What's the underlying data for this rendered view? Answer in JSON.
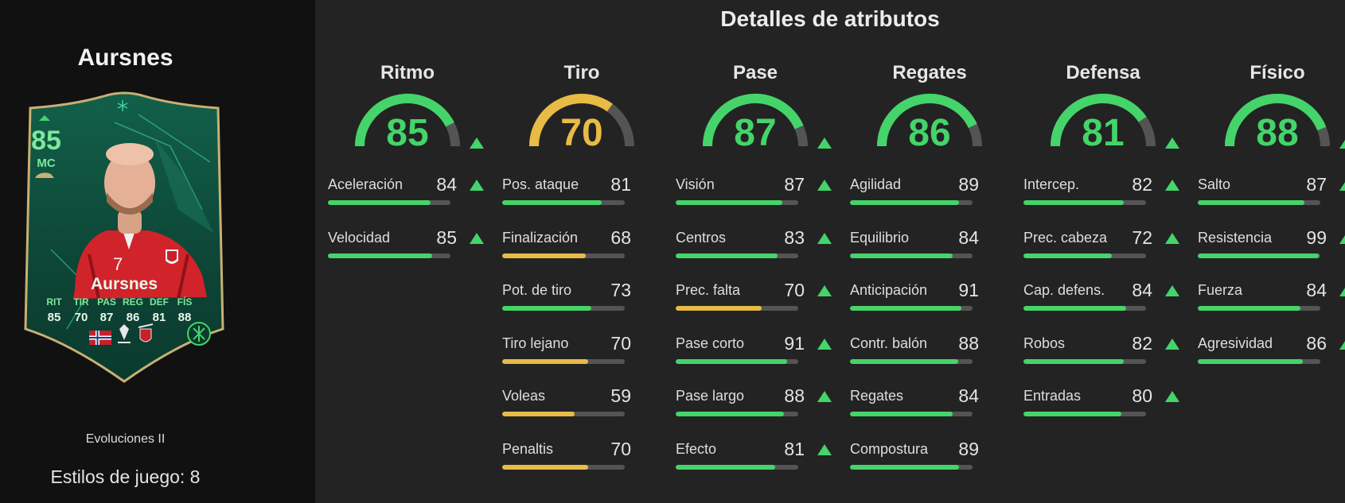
{
  "player": {
    "name": "Aursnes",
    "card_label": "Evoluciones II",
    "playstyles": "Estilos de juego: 8"
  },
  "card": {
    "rating": "85",
    "position": "MC",
    "name": "Aursnes",
    "headers": [
      "RIT",
      "TIR",
      "PAS",
      "REG",
      "DEF",
      "FÍS"
    ],
    "values": [
      "85",
      "70",
      "87",
      "86",
      "81",
      "88"
    ],
    "shirt_number": "7"
  },
  "title": "Detalles de atributos",
  "colors": {
    "green": "#44d46a",
    "yellow": "#e8bb45",
    "track": "#545454",
    "card_bg": "#0f4a3a",
    "card_trim": "#c9b073"
  },
  "categories": [
    {
      "name": "Ritmo",
      "value": 85,
      "color": "#44d46a",
      "arrow": true,
      "stats": [
        {
          "label": "Aceleración",
          "value": 84,
          "color": "#44d46a",
          "arrow": true
        },
        {
          "label": "Velocidad",
          "value": 85,
          "color": "#44d46a",
          "arrow": true
        }
      ]
    },
    {
      "name": "Tiro",
      "value": 70,
      "color": "#e8bb45",
      "arrow": false,
      "stats": [
        {
          "label": "Pos. ataque",
          "value": 81,
          "color": "#44d46a",
          "arrow": false
        },
        {
          "label": "Finalización",
          "value": 68,
          "color": "#e8bb45",
          "arrow": false
        },
        {
          "label": "Pot. de tiro",
          "value": 73,
          "color": "#44d46a",
          "arrow": false
        },
        {
          "label": "Tiro lejano",
          "value": 70,
          "color": "#e8bb45",
          "arrow": false
        },
        {
          "label": "Voleas",
          "value": 59,
          "color": "#e8bb45",
          "arrow": false
        },
        {
          "label": "Penaltis",
          "value": 70,
          "color": "#e8bb45",
          "arrow": false
        }
      ]
    },
    {
      "name": "Pase",
      "value": 87,
      "color": "#44d46a",
      "arrow": true,
      "stats": [
        {
          "label": "Visión",
          "value": 87,
          "color": "#44d46a",
          "arrow": true
        },
        {
          "label": "Centros",
          "value": 83,
          "color": "#44d46a",
          "arrow": true
        },
        {
          "label": "Prec. falta",
          "value": 70,
          "color": "#e8bb45",
          "arrow": true
        },
        {
          "label": "Pase corto",
          "value": 91,
          "color": "#44d46a",
          "arrow": true
        },
        {
          "label": "Pase largo",
          "value": 88,
          "color": "#44d46a",
          "arrow": true
        },
        {
          "label": "Efecto",
          "value": 81,
          "color": "#44d46a",
          "arrow": true
        }
      ]
    },
    {
      "name": "Regates",
      "value": 86,
      "color": "#44d46a",
      "arrow": false,
      "stats": [
        {
          "label": "Agilidad",
          "value": 89,
          "color": "#44d46a",
          "arrow": false
        },
        {
          "label": "Equilibrio",
          "value": 84,
          "color": "#44d46a",
          "arrow": false
        },
        {
          "label": "Anticipación",
          "value": 91,
          "color": "#44d46a",
          "arrow": false
        },
        {
          "label": "Contr. balón",
          "value": 88,
          "color": "#44d46a",
          "arrow": false
        },
        {
          "label": "Regates",
          "value": 84,
          "color": "#44d46a",
          "arrow": false
        },
        {
          "label": "Compostura",
          "value": 89,
          "color": "#44d46a",
          "arrow": false
        }
      ]
    },
    {
      "name": "Defensa",
      "value": 81,
      "color": "#44d46a",
      "arrow": true,
      "stats": [
        {
          "label": "Intercep.",
          "value": 82,
          "color": "#44d46a",
          "arrow": true
        },
        {
          "label": "Prec. cabeza",
          "value": 72,
          "color": "#44d46a",
          "arrow": true
        },
        {
          "label": "Cap. defens.",
          "value": 84,
          "color": "#44d46a",
          "arrow": true
        },
        {
          "label": "Robos",
          "value": 82,
          "color": "#44d46a",
          "arrow": true
        },
        {
          "label": "Entradas",
          "value": 80,
          "color": "#44d46a",
          "arrow": true
        }
      ]
    },
    {
      "name": "Físico",
      "value": 88,
      "color": "#44d46a",
      "arrow": true,
      "stats": [
        {
          "label": "Salto",
          "value": 87,
          "color": "#44d46a",
          "arrow": true
        },
        {
          "label": "Resistencia",
          "value": 99,
          "color": "#44d46a",
          "arrow": true
        },
        {
          "label": "Fuerza",
          "value": 84,
          "color": "#44d46a",
          "arrow": true
        },
        {
          "label": "Agresividad",
          "value": 86,
          "color": "#44d46a",
          "arrow": true
        }
      ]
    }
  ]
}
